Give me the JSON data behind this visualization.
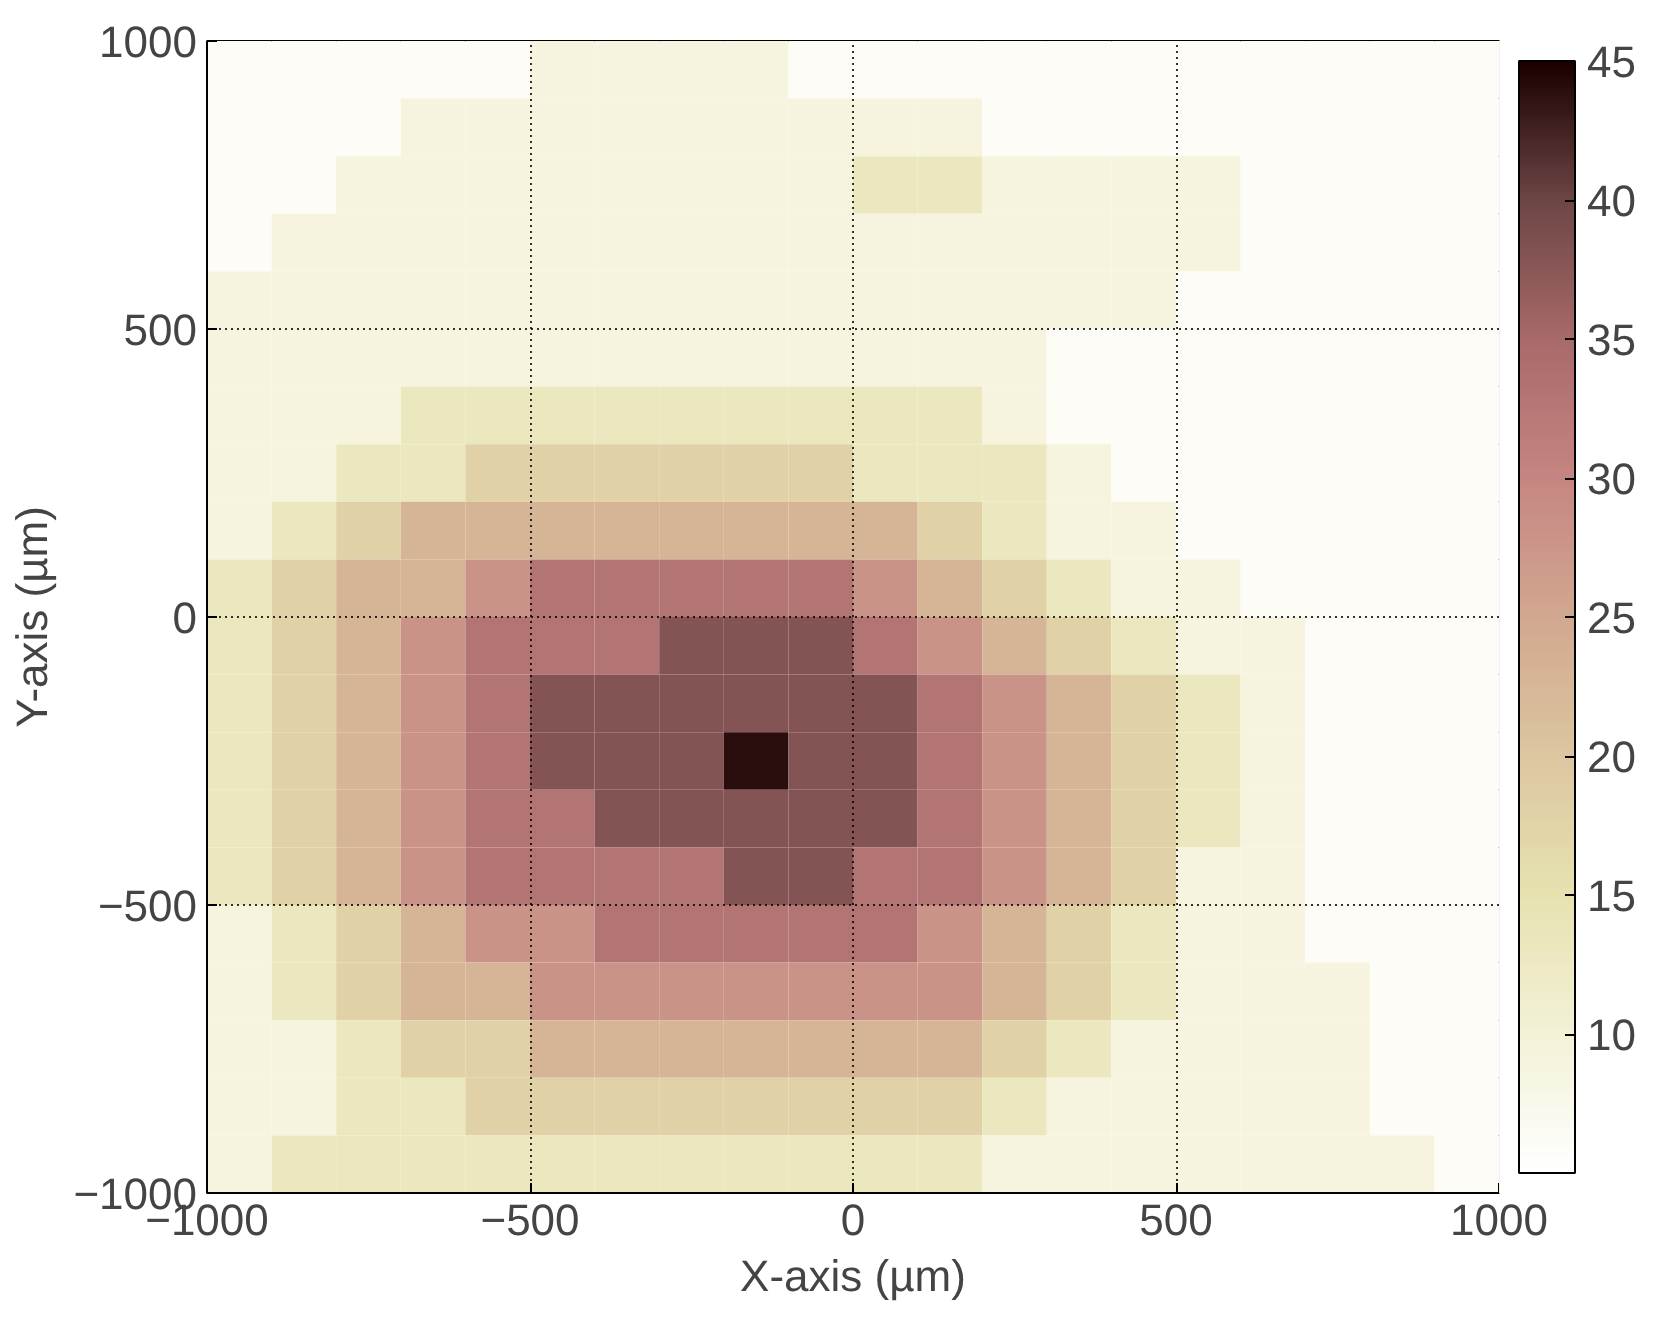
{
  "chart_data": {
    "type": "heatmap",
    "xlabel": "X-axis (µm)",
    "ylabel": "Y-axis (µm)",
    "x": [
      -950,
      -850,
      -750,
      -650,
      -550,
      -450,
      -350,
      -250,
      -150,
      -50,
      50,
      150,
      250,
      350,
      450,
      550,
      650,
      750,
      850,
      950
    ],
    "y": [
      950,
      850,
      750,
      650,
      550,
      450,
      350,
      250,
      150,
      50,
      -50,
      -150,
      -250,
      -350,
      -450,
      -550,
      -650,
      -750,
      -850,
      -950
    ],
    "cells": [
      [
        6,
        6,
        6,
        6,
        6,
        9,
        9,
        9,
        9,
        6,
        6,
        6,
        6,
        6,
        6,
        6,
        6,
        6,
        6,
        6
      ],
      [
        6,
        6,
        6,
        9,
        9,
        9,
        9,
        9,
        9,
        9,
        9,
        9,
        6,
        6,
        6,
        6,
        6,
        6,
        6,
        6
      ],
      [
        6,
        6,
        9,
        9,
        9,
        9,
        9,
        9,
        9,
        9,
        13,
        13,
        9,
        9,
        9,
        9,
        6,
        6,
        6,
        6
      ],
      [
        6,
        9,
        9,
        9,
        9,
        9,
        9,
        9,
        9,
        9,
        9,
        9,
        9,
        9,
        9,
        9,
        6,
        6,
        6,
        6
      ],
      [
        9,
        9,
        9,
        9,
        9,
        9,
        9,
        9,
        9,
        9,
        9,
        9,
        9,
        9,
        9,
        6,
        6,
        6,
        6,
        6
      ],
      [
        9,
        9,
        9,
        9,
        9,
        9,
        9,
        9,
        9,
        9,
        9,
        9,
        9,
        6,
        6,
        6,
        6,
        6,
        6,
        6
      ],
      [
        9,
        9,
        9,
        13,
        13,
        13,
        13,
        13,
        13,
        13,
        13,
        13,
        9,
        6,
        6,
        6,
        6,
        6,
        6,
        6
      ],
      [
        9,
        9,
        13,
        13,
        18,
        18,
        18,
        18,
        18,
        18,
        13,
        13,
        13,
        9,
        6,
        6,
        6,
        6,
        6,
        6
      ],
      [
        9,
        13,
        18,
        23,
        23,
        23,
        23,
        23,
        23,
        23,
        23,
        18,
        13,
        9,
        9,
        6,
        6,
        6,
        6,
        6
      ],
      [
        13,
        18,
        23,
        23,
        28,
        33,
        33,
        33,
        33,
        33,
        28,
        23,
        18,
        13,
        9,
        9,
        6,
        6,
        6,
        6
      ],
      [
        13,
        18,
        23,
        28,
        33,
        33,
        33,
        38,
        38,
        38,
        33,
        28,
        23,
        18,
        13,
        9,
        9,
        6,
        6,
        6
      ],
      [
        13,
        18,
        23,
        28,
        33,
        38,
        38,
        38,
        38,
        38,
        38,
        33,
        28,
        23,
        18,
        13,
        9,
        6,
        6,
        6
      ],
      [
        13,
        18,
        23,
        28,
        33,
        38,
        38,
        38,
        44,
        38,
        38,
        33,
        28,
        23,
        18,
        13,
        9,
        6,
        6,
        6
      ],
      [
        13,
        18,
        23,
        28,
        33,
        33,
        38,
        38,
        38,
        38,
        38,
        33,
        28,
        23,
        18,
        13,
        9,
        6,
        6,
        6
      ],
      [
        13,
        18,
        23,
        28,
        33,
        33,
        33,
        33,
        38,
        38,
        33,
        33,
        28,
        23,
        18,
        9,
        9,
        6,
        6,
        6
      ],
      [
        9,
        13,
        18,
        23,
        28,
        28,
        33,
        33,
        33,
        33,
        33,
        28,
        23,
        18,
        13,
        9,
        9,
        6,
        6,
        6
      ],
      [
        9,
        13,
        18,
        23,
        23,
        28,
        28,
        28,
        28,
        28,
        28,
        28,
        23,
        18,
        13,
        9,
        9,
        9,
        6,
        6
      ],
      [
        9,
        9,
        13,
        18,
        18,
        23,
        23,
        23,
        23,
        23,
        23,
        23,
        18,
        13,
        9,
        9,
        9,
        9,
        6,
        6
      ],
      [
        9,
        9,
        13,
        13,
        18,
        18,
        18,
        18,
        18,
        18,
        18,
        18,
        13,
        9,
        9,
        9,
        9,
        9,
        6,
        6
      ],
      [
        9,
        13,
        13,
        13,
        13,
        13,
        13,
        13,
        13,
        13,
        13,
        13,
        9,
        9,
        9,
        9,
        9,
        9,
        9,
        6
      ]
    ],
    "xlim": [
      -1000,
      1000
    ],
    "ylim": [
      -1000,
      1000
    ],
    "xticks": [
      -1000,
      -500,
      0,
      500,
      1000
    ],
    "yticks": [
      -1000,
      -500,
      0,
      500,
      1000
    ],
    "clim": [
      5,
      45
    ],
    "cticks": [
      10,
      15,
      20,
      25,
      30,
      35,
      40,
      45
    ],
    "grid": true
  }
}
